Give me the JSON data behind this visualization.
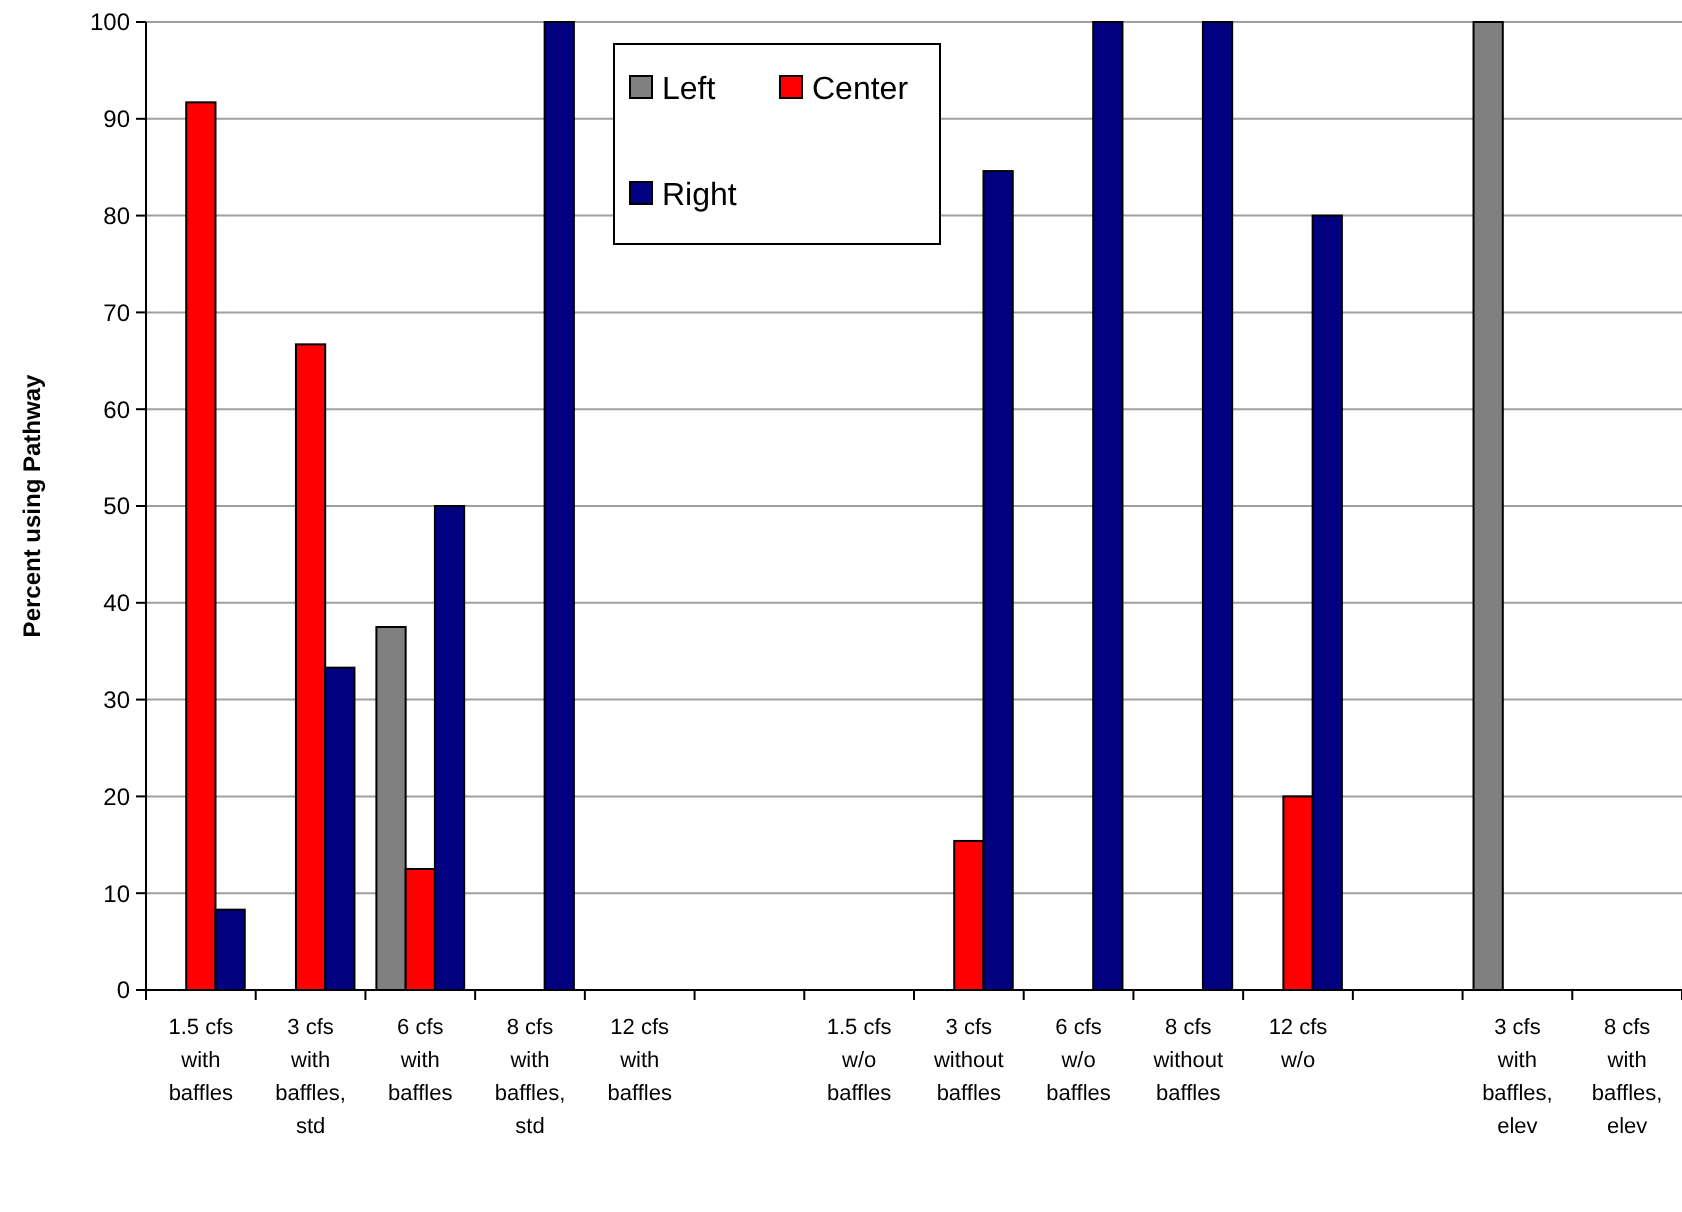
{
  "chart_data": {
    "type": "bar",
    "ylabel": "Percent using Pathway",
    "categories": [
      "1.5 cfs with baffles",
      "3 cfs with baffles, std",
      "6 cfs with baffles",
      "8 cfs with baffles, std",
      "12 cfs with baffles",
      null,
      "1.5 cfs w/o baffles",
      "3 cfs without baffles",
      "6 cfs w/o baffles",
      "8 cfs without baffles",
      "12 cfs w/o",
      null,
      "3 cfs with baffles, elev",
      "8 cfs with baffles, elev"
    ],
    "series": [
      {
        "name": "Left",
        "color": "#808080",
        "values": [
          null,
          null,
          37.5,
          null,
          null,
          null,
          null,
          null,
          null,
          null,
          null,
          null,
          100,
          null
        ]
      },
      {
        "name": "Center",
        "color": "#ff0000",
        "values": [
          91.7,
          66.7,
          12.5,
          null,
          null,
          null,
          null,
          15.4,
          null,
          null,
          20,
          null,
          null,
          null
        ]
      },
      {
        "name": "Right",
        "color": "#000080",
        "values": [
          8.3,
          33.3,
          50,
          100,
          null,
          null,
          null,
          84.6,
          100,
          100,
          80,
          null,
          null,
          null
        ]
      }
    ],
    "ylim": [
      0,
      100
    ],
    "yticks": [
      0,
      10,
      20,
      30,
      40,
      50,
      60,
      70,
      80,
      90,
      100
    ],
    "grid": "y",
    "legend": "top"
  }
}
